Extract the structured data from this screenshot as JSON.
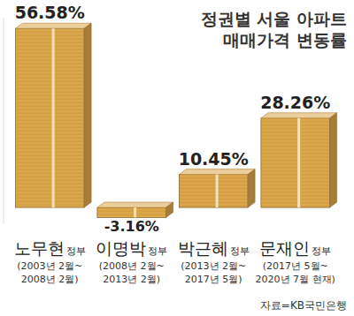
{
  "chart_data": {
    "type": "bar",
    "title": "정권별 서울 아파트 매매가격 변동률",
    "categories": [
      "노무현 정부",
      "이명박 정부",
      "박근혜 정부",
      "문재인 정부"
    ],
    "values": [
      56.58,
      -3.16,
      10.45,
      28.26
    ],
    "value_labels": [
      "56.58%",
      "-3.16%",
      "10.45%",
      "28.26%"
    ],
    "annotations": [
      [
        "(2003년 2월~",
        "2008년 2월)"
      ],
      [
        "(2008년 2월~",
        "2013년 2월)"
      ],
      [
        "(2013년 2월~",
        "2017년 5월)"
      ],
      [
        "(2017년 5월~",
        "2020년 7월 현재)"
      ]
    ],
    "source": "자료=KB국민은행",
    "color": "#dca64a",
    "ylim": [
      -5,
      60
    ],
    "data_labels": true,
    "tick_labels": false,
    "grid": false
  }
}
